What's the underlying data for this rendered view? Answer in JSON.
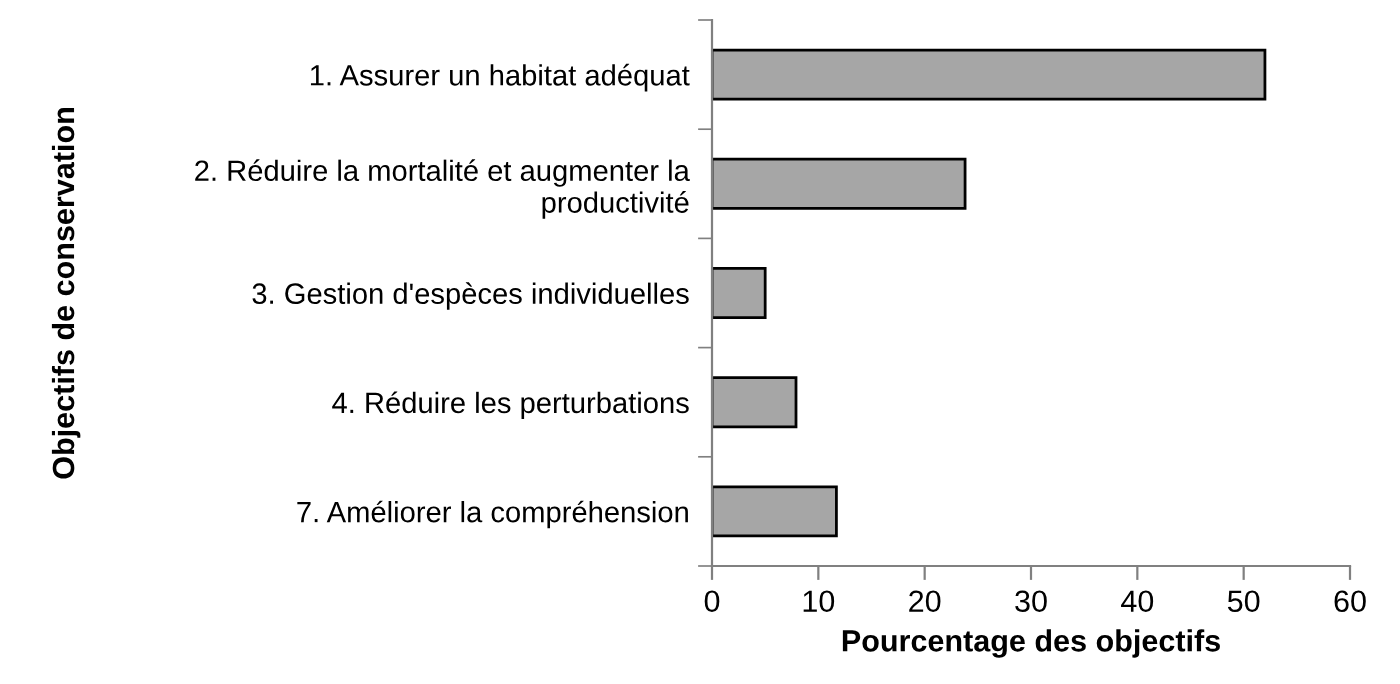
{
  "chart_data": {
    "type": "bar",
    "orientation": "horizontal",
    "ylabel": "Objectifs de conservation",
    "xlabel": "Pourcentage des objectifs",
    "categories": [
      "1. Assurer un habitat adéquat",
      "2. Réduire la mortalité et augmenter la\nproductivité",
      "3. Gestion d'espèces individuelles",
      "4. Réduire les perturbations",
      "7. Améliorer la compréhension"
    ],
    "values": [
      52,
      23.8,
      5,
      7.9,
      11.7
    ],
    "color": "#a6a6a6",
    "xlim": [
      0,
      60
    ],
    "xticks": [
      0,
      10,
      20,
      30,
      40,
      50,
      60
    ],
    "grid": false,
    "legend": false
  }
}
